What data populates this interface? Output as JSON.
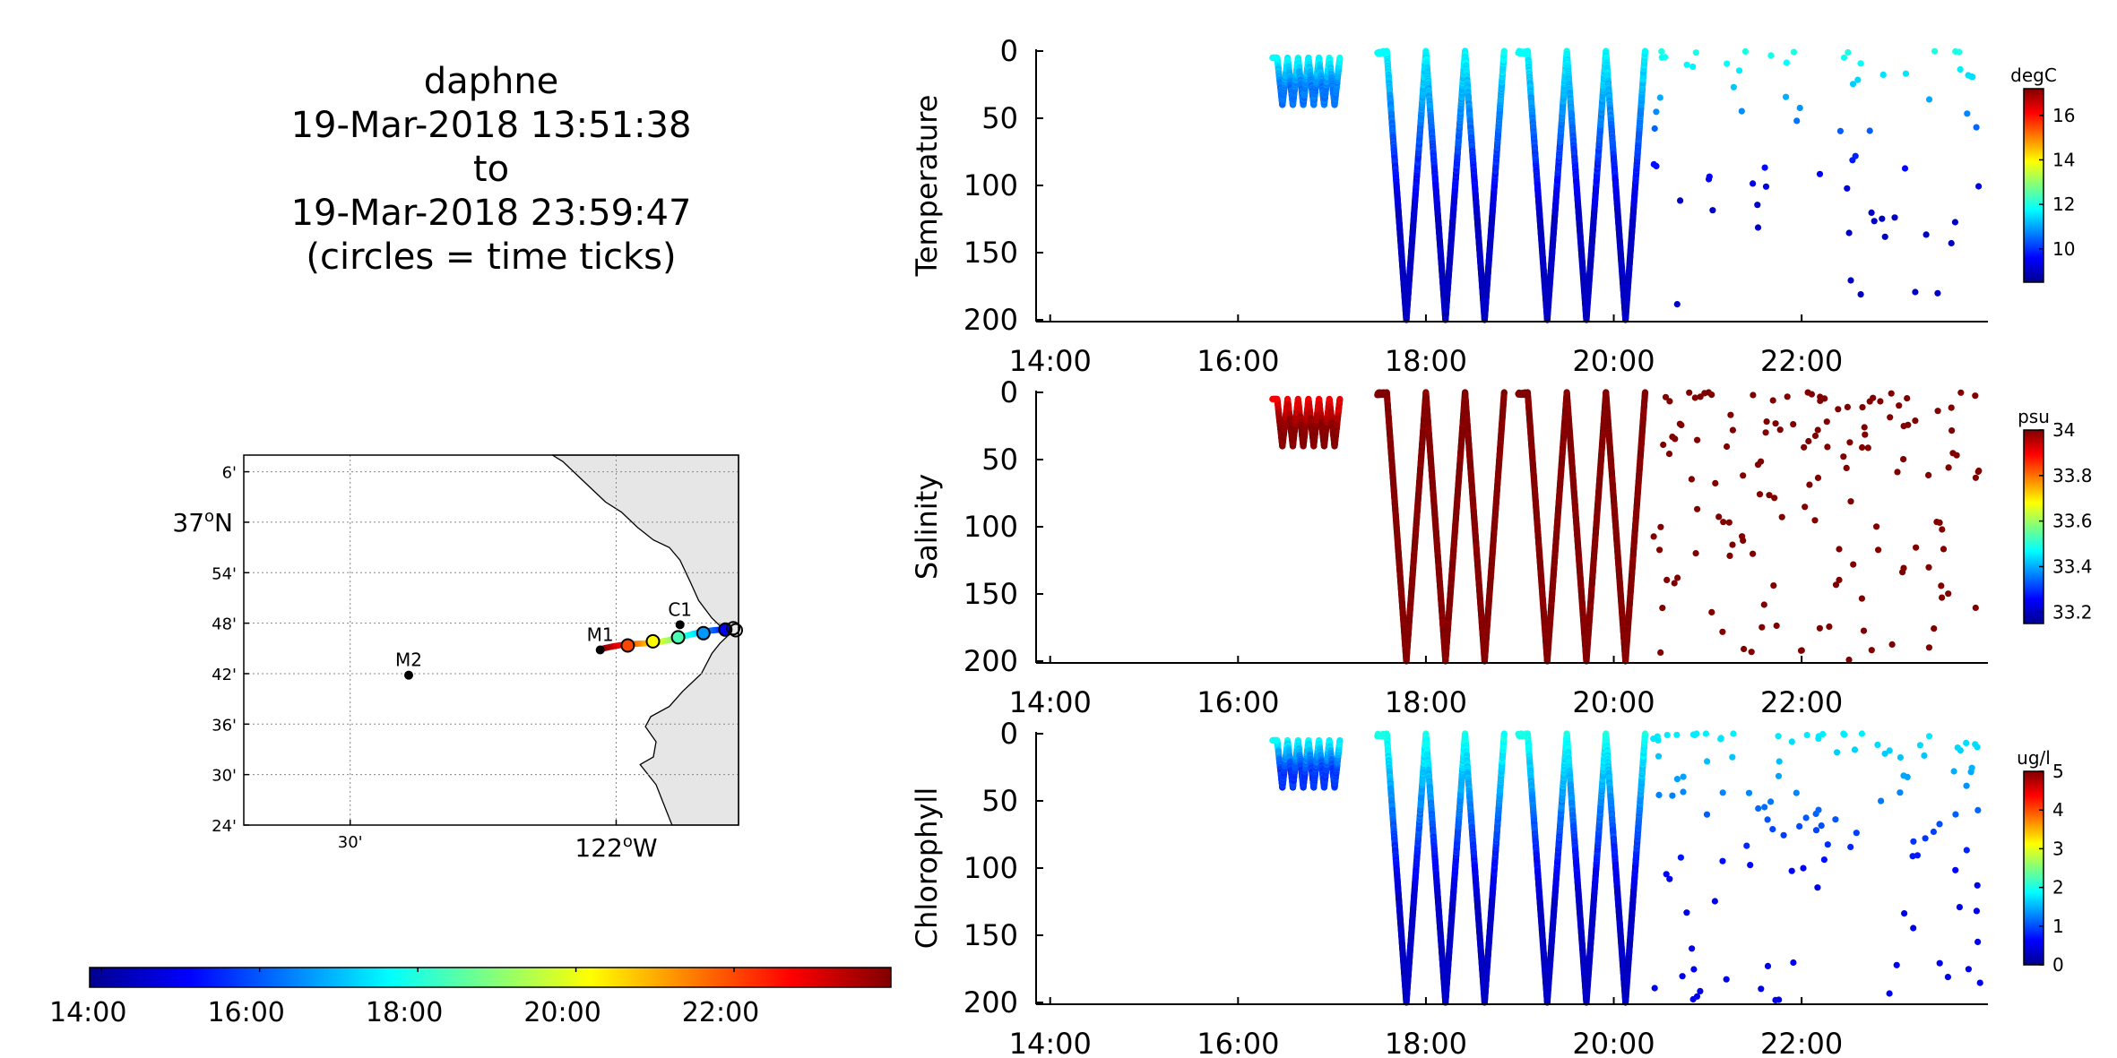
{
  "title": {
    "lines": [
      "daphne",
      "19-Mar-2018 13:51:38",
      "to",
      "19-Mar-2018 23:59:47",
      "(circles = time ticks)"
    ]
  },
  "colors": {
    "jet": [
      "#00008f",
      "#0000ff",
      "#007fff",
      "#00ffff",
      "#7fff7f",
      "#ffff00",
      "#ff7f00",
      "#ff0000",
      "#800000"
    ],
    "land": "#e6e6e6",
    "grid": "#888888",
    "axis": "#000000"
  },
  "map": {
    "lat_ticks": [
      "6'",
      "37°N",
      "54'",
      "48'",
      "42'",
      "36'",
      "30'",
      "24'"
    ],
    "lon_ticks": [
      "30'",
      "122°W"
    ],
    "moorings": [
      {
        "name": "M1",
        "lon": -122.03,
        "lat": 36.747
      },
      {
        "name": "M2",
        "lon": -122.39,
        "lat": 36.697
      },
      {
        "name": "C1",
        "lon": -121.88,
        "lat": 36.797
      }
    ],
    "track_time_ticks": [
      "14:00",
      "16:00",
      "18:00",
      "20:00",
      "22:00"
    ]
  },
  "time_colorbar": {
    "ticks": [
      "14:00",
      "16:00",
      "18:00",
      "20:00",
      "22:00"
    ]
  },
  "chart_data": [
    {
      "type": "scatter",
      "ylabel": "Temperature",
      "unit": "degC",
      "x_ticks": [
        "14:00",
        "16:00",
        "18:00",
        "20:00",
        "22:00"
      ],
      "xlim": [
        "13:51",
        "23:59"
      ],
      "y_ticks": [
        "0",
        "50",
        "100",
        "150",
        "200"
      ],
      "ylim": [
        0,
        200
      ],
      "y_reversed": true,
      "colorbar": {
        "ticks": [
          "10",
          "12",
          "14",
          "16"
        ],
        "range": [
          8.5,
          17.2
        ]
      },
      "segments": [
        {
          "kind": "sawtooth",
          "t_start": "16:25",
          "t_end": "17:05",
          "depth_min": 5,
          "depth_max": 40,
          "profiles": 12,
          "value_top": 11.8,
          "value_bottom": 10.6
        },
        {
          "kind": "yo",
          "t_start": "17:35",
          "t_end": "18:50",
          "depth_min": 0,
          "depth_max": 200,
          "profiles": 6,
          "value_top": 11.8,
          "value_bottom": 9.0
        },
        {
          "kind": "yo",
          "t_start": "19:05",
          "t_end": "20:20",
          "depth_min": 0,
          "depth_max": 200,
          "profiles": 6,
          "value_top": 11.8,
          "value_bottom": 9.0
        },
        {
          "kind": "sparse",
          "t_start": "20:25",
          "t_end": "23:55",
          "depth_min": 0,
          "depth_max": 200,
          "count": 70,
          "value_top": 12.0,
          "value_bottom": 9.0
        }
      ]
    },
    {
      "type": "scatter",
      "ylabel": "Salinity",
      "unit": "psu",
      "x_ticks": [
        "14:00",
        "16:00",
        "18:00",
        "20:00",
        "22:00"
      ],
      "xlim": [
        "13:51",
        "23:59"
      ],
      "y_ticks": [
        "0",
        "50",
        "100",
        "150",
        "200"
      ],
      "ylim": [
        0,
        200
      ],
      "y_reversed": true,
      "colorbar": {
        "ticks": [
          "33.2",
          "33.4",
          "33.6",
          "33.8",
          "34"
        ],
        "range": [
          33.15,
          34.0
        ]
      },
      "segments": [
        {
          "kind": "sawtooth",
          "t_start": "16:25",
          "t_end": "17:05",
          "depth_min": 5,
          "depth_max": 40,
          "profiles": 12,
          "value_top": 33.9,
          "value_bottom": 34.0
        },
        {
          "kind": "yo",
          "t_start": "17:35",
          "t_end": "18:50",
          "depth_min": 0,
          "depth_max": 200,
          "profiles": 6,
          "value_top": 34.0,
          "value_bottom": 34.0
        },
        {
          "kind": "yo",
          "t_start": "19:05",
          "t_end": "20:20",
          "depth_min": 0,
          "depth_max": 200,
          "profiles": 6,
          "value_top": 34.0,
          "value_bottom": 34.0
        },
        {
          "kind": "sparse",
          "t_start": "20:25",
          "t_end": "23:55",
          "depth_min": 0,
          "depth_max": 200,
          "count": 140,
          "value_top": 34.0,
          "value_bottom": 34.0
        }
      ]
    },
    {
      "type": "scatter",
      "ylabel": "Chlorophyll",
      "unit": "ug/l",
      "x_ticks": [
        "14:00",
        "16:00",
        "18:00",
        "20:00",
        "22:00"
      ],
      "xlim": [
        "13:51",
        "23:59"
      ],
      "y_ticks": [
        "0",
        "50",
        "100",
        "150",
        "200"
      ],
      "ylim": [
        0,
        200
      ],
      "y_reversed": true,
      "colorbar": {
        "ticks": [
          "0",
          "1",
          "2",
          "3",
          "4",
          "5"
        ],
        "range": [
          0,
          5
        ]
      },
      "segments": [
        {
          "kind": "sawtooth",
          "t_start": "16:25",
          "t_end": "17:05",
          "depth_min": 5,
          "depth_max": 40,
          "profiles": 12,
          "value_top": 1.9,
          "value_bottom": 0.9
        },
        {
          "kind": "yo",
          "t_start": "17:35",
          "t_end": "18:50",
          "depth_min": 0,
          "depth_max": 200,
          "profiles": 6,
          "value_top": 2.0,
          "value_bottom": 0.3
        },
        {
          "kind": "yo",
          "t_start": "19:05",
          "t_end": "20:20",
          "depth_min": 0,
          "depth_max": 200,
          "profiles": 6,
          "value_top": 2.0,
          "value_bottom": 0.3
        },
        {
          "kind": "sparse",
          "t_start": "20:25",
          "t_end": "23:55",
          "depth_min": 0,
          "depth_max": 200,
          "count": 120,
          "value_top": 1.8,
          "value_bottom": 0.5
        }
      ]
    }
  ]
}
